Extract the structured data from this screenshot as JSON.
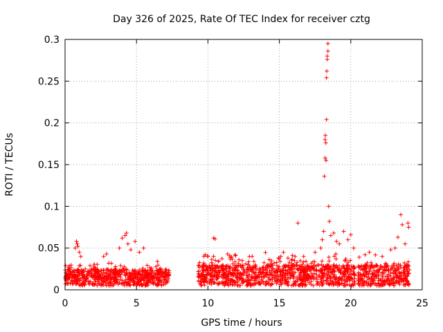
{
  "chart_data": {
    "type": "scatter",
    "title": "Day 326 of 2025, Rate Of TEC Index for receiver cztg",
    "xlabel": "GPS time / hours",
    "ylabel": "ROTI / TECUs",
    "xlim": [
      0,
      25
    ],
    "ylim": [
      0,
      0.3
    ],
    "xticks": [
      "0",
      "5",
      "10",
      "15",
      "20",
      "25"
    ],
    "xtick_values": [
      0,
      5,
      10,
      15,
      20,
      25
    ],
    "yticks": [
      "0",
      "0.05",
      "0.1",
      "0.15",
      "0.2",
      "0.25",
      "0.3"
    ],
    "ytick_values": [
      0,
      0.05,
      0.1,
      0.15,
      0.2,
      0.25,
      0.3
    ],
    "grid": true,
    "marker": "+",
    "series": [
      {
        "name": "ROTI",
        "color": "#ff0000",
        "segments": [
          {
            "x_range": [
              0.0,
              7.3
            ],
            "baseline": [
              0.005,
              0.025
            ],
            "spread": 0.012
          },
          {
            "x_range": [
              9.3,
              20.3
            ],
            "baseline": [
              0.005,
              0.03
            ],
            "spread": 0.015
          },
          {
            "x_range": [
              20.5,
              24.1
            ],
            "baseline": [
              0.005,
              0.03
            ],
            "spread": 0.014
          }
        ],
        "x": [
          0.7,
          0.8,
          0.85,
          0.9,
          1.0,
          1.1,
          2.7,
          2.9,
          3.8,
          4.0,
          4.2,
          4.3,
          4.4,
          4.6,
          4.9,
          5.2,
          5.5,
          9.8,
          10.0,
          10.4,
          10.5,
          11.9,
          12.4,
          12.9,
          14.2,
          15.1,
          15.6,
          16.3,
          16.7,
          17.5,
          17.9,
          18.0,
          18.1,
          18.15,
          18.2,
          18.2,
          18.22,
          18.25,
          18.27,
          18.3,
          18.3,
          18.32,
          18.35,
          18.35,
          18.4,
          18.4,
          18.45,
          18.5,
          18.6,
          18.8,
          19.0,
          19.2,
          19.5,
          19.8,
          20.0,
          20.2,
          21.0,
          21.3,
          22.2,
          22.8,
          23.1,
          23.3,
          23.5,
          23.6,
          23.8,
          24.0,
          24.05
        ],
        "y": [
          0.05,
          0.058,
          0.055,
          0.052,
          0.045,
          0.04,
          0.04,
          0.043,
          0.05,
          0.062,
          0.065,
          0.068,
          0.055,
          0.048,
          0.058,
          0.045,
          0.05,
          0.042,
          0.04,
          0.062,
          0.061,
          0.042,
          0.035,
          0.04,
          0.03,
          0.04,
          0.038,
          0.08,
          0.04,
          0.045,
          0.05,
          0.06,
          0.07,
          0.136,
          0.158,
          0.18,
          0.185,
          0.176,
          0.155,
          0.204,
          0.254,
          0.262,
          0.276,
          0.28,
          0.286,
          0.295,
          0.1,
          0.082,
          0.065,
          0.068,
          0.058,
          0.055,
          0.07,
          0.06,
          0.066,
          0.05,
          0.042,
          0.045,
          0.04,
          0.048,
          0.05,
          0.063,
          0.09,
          0.078,
          0.055,
          0.08,
          0.075
        ]
      }
    ]
  }
}
